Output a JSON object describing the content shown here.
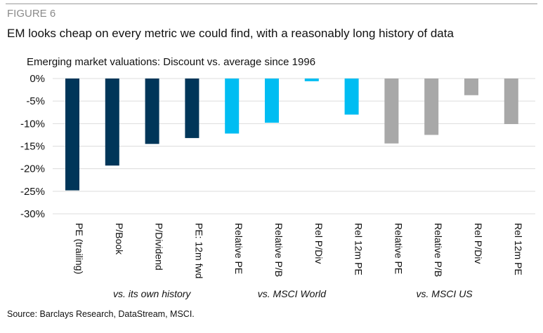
{
  "figure_label": "FIGURE 6",
  "title": "EM looks cheap on every metric we could find, with a reasonably long history of data",
  "source": "Source: Barclays Research, DataStream, MSCI.",
  "chart_data": {
    "type": "bar",
    "title": "Emerging market valuations: Discount vs. average since 1996",
    "categories": [
      "PE (trailing)",
      "P/Book",
      "P/Dividend",
      "PE: 12m fwd",
      "Relative PE",
      "Relative P/B",
      "Rel P/Div",
      "Rel 12m PE",
      "Relative PE",
      "Relative P/B",
      "Rel P/Div",
      "Rel 12m PE"
    ],
    "values": [
      -24.8,
      -19.3,
      -14.5,
      -13.2,
      -12.2,
      -9.8,
      -0.6,
      -8.0,
      -14.4,
      -12.5,
      -3.7,
      -10.1
    ],
    "groups": [
      {
        "label": "vs. its own history",
        "color": "#003659",
        "count": 4
      },
      {
        "label": "vs. MSCI World",
        "color": "#00bdf2",
        "count": 4
      },
      {
        "label": "vs. MSCI US",
        "color": "#a8a8a8",
        "count": 4
      }
    ],
    "yticks": [
      "0%",
      "-5%",
      "-10%",
      "-15%",
      "-20%",
      "-25%",
      "-30%"
    ],
    "ylim": [
      -30,
      0
    ],
    "grid": true,
    "unit": "%"
  }
}
